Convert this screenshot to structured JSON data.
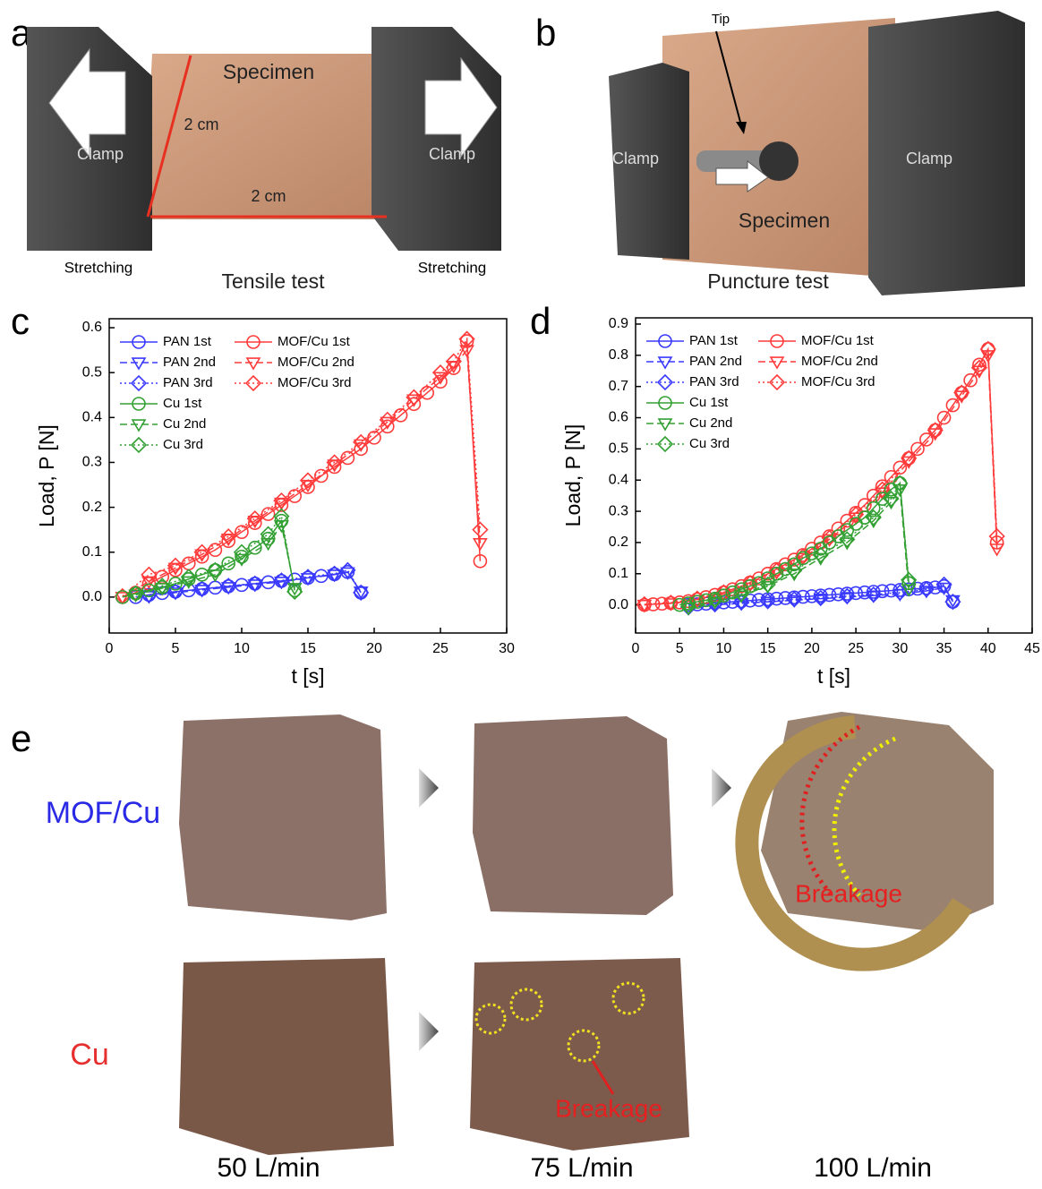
{
  "panel_labels": [
    "a",
    "b",
    "c",
    "d",
    "e"
  ],
  "panel_a": {
    "specimen": "Specimen",
    "dim_vertical": "2 cm",
    "dim_horizontal": "2 cm",
    "clamp_left": "Clamp",
    "clamp_right": "Clamp",
    "stretching_left": "Stretching",
    "stretching_right": "Stretching",
    "caption": "Tensile test"
  },
  "panel_b": {
    "tip": "Tip",
    "clamp_left": "Clamp",
    "clamp_right": "Clamp",
    "specimen": "Specimen",
    "caption": "Puncture test"
  },
  "panel_e": {
    "rows": [
      "MOF/Cu",
      "Cu"
    ],
    "columns": [
      "50 L/min",
      "75 L/min",
      "100 L/min"
    ],
    "annotations": [
      "Breakage",
      "Breakage"
    ]
  },
  "chart_data": [
    {
      "type": "line",
      "xlabel": "t [s]",
      "ylabel": "Load, P [N]",
      "xlim": [
        0,
        30
      ],
      "ylim": [
        -0.08,
        0.62
      ],
      "xticks": [
        0,
        5,
        10,
        15,
        20,
        25,
        30
      ],
      "yticks": [
        {
          "value": 0,
          "label": "0.0"
        },
        0.1,
        0.2,
        0.3,
        0.4,
        0.5,
        0.6
      ],
      "series": [
        {
          "name": "PAN 1st",
          "color": "#3a3aff",
          "marker": "circle",
          "line_style": "solid",
          "x": [
            2,
            3,
            4,
            5,
            6,
            7,
            8,
            9,
            10,
            11,
            12,
            13,
            14,
            15,
            16,
            17,
            18,
            19
          ],
          "values": [
            0,
            0.005,
            0.009,
            0.012,
            0.015,
            0.018,
            0.021,
            0.024,
            0.027,
            0.03,
            0.033,
            0.036,
            0.039,
            0.043,
            0.047,
            0.051,
            0.056,
            0.01
          ]
        },
        {
          "name": "PAN 2nd",
          "color": "#3a3aff",
          "marker": "triangle-down",
          "line_style": "dashed",
          "x": [
            3,
            5,
            7,
            9,
            11,
            13,
            15,
            17,
            18,
            19
          ],
          "values": [
            0.002,
            0.01,
            0.016,
            0.022,
            0.028,
            0.034,
            0.042,
            0.05,
            0.055,
            0.012
          ]
        },
        {
          "name": "PAN 3rd",
          "color": "#3a3aff",
          "marker": "diamond",
          "line_style": "dotted",
          "x": [
            3,
            5,
            7,
            9,
            11,
            13,
            15,
            17,
            18,
            19
          ],
          "values": [
            0.004,
            0.012,
            0.018,
            0.025,
            0.03,
            0.037,
            0.045,
            0.052,
            0.06,
            0.01
          ]
        },
        {
          "name": "MOF/Cu 1st",
          "color": "#ff3b3b",
          "marker": "circle",
          "line_style": "solid",
          "x": [
            1,
            2,
            3,
            4,
            5,
            6,
            7,
            8,
            9,
            10,
            11,
            12,
            13,
            14,
            15,
            16,
            17,
            18,
            19,
            20,
            21,
            22,
            23,
            24,
            25,
            26,
            27,
            28
          ],
          "values": [
            0,
            0.01,
            0.03,
            0.045,
            0.06,
            0.075,
            0.09,
            0.105,
            0.125,
            0.145,
            0.165,
            0.185,
            0.205,
            0.225,
            0.245,
            0.27,
            0.29,
            0.31,
            0.33,
            0.355,
            0.38,
            0.405,
            0.43,
            0.455,
            0.48,
            0.51,
            0.57,
            0.08
          ]
        },
        {
          "name": "MOF/Cu 2nd",
          "color": "#ff3b3b",
          "marker": "triangle-down",
          "line_style": "dashed",
          "x": [
            1,
            3,
            5,
            7,
            9,
            11,
            13,
            15,
            17,
            19,
            21,
            23,
            25,
            26,
            27,
            28
          ],
          "values": [
            0,
            0.035,
            0.065,
            0.095,
            0.13,
            0.17,
            0.21,
            0.25,
            0.295,
            0.34,
            0.39,
            0.44,
            0.49,
            0.515,
            0.55,
            0.12
          ]
        },
        {
          "name": "MOF/Cu 3rd",
          "color": "#ff3b3b",
          "marker": "diamond",
          "line_style": "dotted",
          "x": [
            1,
            3,
            5,
            7,
            9,
            11,
            13,
            15,
            17,
            19,
            21,
            23,
            25,
            26,
            27,
            28
          ],
          "values": [
            0.002,
            0.05,
            0.07,
            0.1,
            0.135,
            0.175,
            0.215,
            0.26,
            0.3,
            0.345,
            0.395,
            0.445,
            0.5,
            0.525,
            0.575,
            0.15
          ]
        },
        {
          "name": "Cu 1st",
          "color": "#33a033",
          "marker": "circle",
          "line_style": "solid",
          "x": [
            1,
            2,
            3,
            4,
            5,
            6,
            7,
            8,
            9,
            10,
            11,
            12,
            13,
            14
          ],
          "values": [
            0,
            0.008,
            0.015,
            0.022,
            0.03,
            0.04,
            0.05,
            0.06,
            0.075,
            0.09,
            0.11,
            0.13,
            0.17,
            0.015
          ]
        },
        {
          "name": "Cu 2nd",
          "color": "#33a033",
          "marker": "triangle-down",
          "line_style": "dashed",
          "x": [
            2,
            4,
            6,
            8,
            10,
            12,
            13,
            14
          ],
          "values": [
            0.005,
            0.02,
            0.035,
            0.05,
            0.085,
            0.12,
            0.16,
            0.02
          ]
        },
        {
          "name": "Cu 3rd",
          "color": "#33a033",
          "marker": "diamond",
          "line_style": "dotted",
          "x": [
            2,
            4,
            6,
            8,
            10,
            12,
            13,
            14
          ],
          "values": [
            0.008,
            0.025,
            0.045,
            0.06,
            0.1,
            0.14,
            0.18,
            0.012
          ]
        }
      ]
    },
    {
      "type": "line",
      "xlabel": "t [s]",
      "ylabel": "Load, P [N]",
      "xlim": [
        0,
        45
      ],
      "ylim": [
        -0.09,
        0.92
      ],
      "xticks": [
        0,
        5,
        10,
        15,
        20,
        25,
        30,
        35,
        40,
        45
      ],
      "yticks": [
        {
          "value": 0,
          "label": "0.0"
        },
        0.1,
        0.2,
        0.3,
        0.4,
        0.5,
        0.6,
        0.7,
        0.8,
        0.9
      ],
      "series": [
        {
          "name": "PAN 1st",
          "color": "#3a3aff",
          "marker": "circle",
          "line_style": "solid",
          "x": [
            6,
            7,
            8,
            9,
            10,
            11,
            12,
            13,
            14,
            15,
            16,
            17,
            18,
            19,
            20,
            21,
            22,
            23,
            24,
            25,
            26,
            27,
            28,
            29,
            30,
            31,
            32,
            33,
            34,
            35,
            36
          ],
          "values": [
            0,
            0.002,
            0.004,
            0.006,
            0.008,
            0.01,
            0.012,
            0.014,
            0.016,
            0.018,
            0.02,
            0.022,
            0.024,
            0.026,
            0.028,
            0.03,
            0.032,
            0.034,
            0.036,
            0.038,
            0.04,
            0.042,
            0.044,
            0.046,
            0.048,
            0.05,
            0.052,
            0.054,
            0.056,
            0.06,
            0.01
          ]
        },
        {
          "name": "PAN 2nd",
          "color": "#3a3aff",
          "marker": "triangle-down",
          "line_style": "dashed",
          "x": [
            6,
            9,
            12,
            15,
            18,
            21,
            24,
            27,
            30,
            33,
            35,
            36
          ],
          "values": [
            -0.01,
            0,
            0.005,
            0.01,
            0.015,
            0.02,
            0.025,
            0.03,
            0.035,
            0.045,
            0.055,
            0.015
          ]
        },
        {
          "name": "PAN 3rd",
          "color": "#3a3aff",
          "marker": "diamond",
          "line_style": "dotted",
          "x": [
            6,
            9,
            12,
            15,
            18,
            21,
            24,
            27,
            30,
            33,
            35,
            36
          ],
          "values": [
            -0.008,
            0.002,
            0.008,
            0.012,
            0.018,
            0.022,
            0.028,
            0.033,
            0.04,
            0.05,
            0.065,
            0.01
          ]
        },
        {
          "name": "MOF/Cu 1st",
          "color": "#ff3b3b",
          "marker": "circle",
          "line_style": "solid",
          "x": [
            1,
            2,
            3,
            4,
            5,
            6,
            7,
            8,
            9,
            10,
            11,
            12,
            13,
            14,
            15,
            16,
            17,
            18,
            19,
            20,
            21,
            22,
            23,
            24,
            25,
            26,
            27,
            28,
            29,
            30,
            31,
            32,
            33,
            34,
            35,
            36,
            37,
            38,
            39,
            40,
            41
          ],
          "values": [
            0,
            0.002,
            0.004,
            0.006,
            0.008,
            0.012,
            0.018,
            0.025,
            0.032,
            0.04,
            0.05,
            0.06,
            0.072,
            0.085,
            0.1,
            0.115,
            0.13,
            0.145,
            0.16,
            0.18,
            0.2,
            0.22,
            0.245,
            0.27,
            0.295,
            0.32,
            0.35,
            0.38,
            0.41,
            0.44,
            0.47,
            0.5,
            0.53,
            0.56,
            0.6,
            0.64,
            0.68,
            0.72,
            0.77,
            0.82,
            0.2
          ]
        },
        {
          "name": "MOF/Cu 2nd",
          "color": "#ff3b3b",
          "marker": "triangle-down",
          "line_style": "dashed",
          "x": [
            1,
            4,
            7,
            10,
            13,
            16,
            19,
            22,
            25,
            28,
            31,
            34,
            37,
            39,
            40,
            41
          ],
          "values": [
            0,
            0.005,
            0.015,
            0.035,
            0.065,
            0.105,
            0.15,
            0.21,
            0.28,
            0.36,
            0.46,
            0.55,
            0.67,
            0.75,
            0.8,
            0.18
          ]
        },
        {
          "name": "MOF/Cu 3rd",
          "color": "#ff3b3b",
          "marker": "diamond",
          "line_style": "dotted",
          "x": [
            1,
            4,
            7,
            10,
            13,
            16,
            19,
            22,
            25,
            28,
            31,
            34,
            37,
            39,
            40,
            41
          ],
          "values": [
            0.002,
            0.007,
            0.02,
            0.04,
            0.07,
            0.11,
            0.155,
            0.215,
            0.29,
            0.37,
            0.47,
            0.56,
            0.68,
            0.76,
            0.82,
            0.22
          ]
        },
        {
          "name": "Cu 1st",
          "color": "#33a033",
          "marker": "circle",
          "line_style": "solid",
          "x": [
            5,
            6,
            7,
            8,
            9,
            10,
            11,
            12,
            13,
            14,
            15,
            16,
            17,
            18,
            19,
            20,
            21,
            22,
            23,
            24,
            25,
            26,
            27,
            28,
            29,
            30,
            31
          ],
          "values": [
            0,
            0.005,
            0.01,
            0.015,
            0.02,
            0.03,
            0.04,
            0.05,
            0.06,
            0.07,
            0.085,
            0.1,
            0.115,
            0.13,
            0.15,
            0.165,
            0.18,
            0.2,
            0.22,
            0.24,
            0.26,
            0.28,
            0.31,
            0.34,
            0.37,
            0.39,
            0.07
          ]
        },
        {
          "name": "Cu 2nd",
          "color": "#33a033",
          "marker": "triangle-down",
          "line_style": "dashed",
          "x": [
            6,
            9,
            12,
            15,
            18,
            21,
            24,
            27,
            29,
            30,
            31
          ],
          "values": [
            -0.01,
            0.01,
            0.03,
            0.06,
            0.1,
            0.15,
            0.2,
            0.27,
            0.33,
            0.37,
            0.05
          ]
        },
        {
          "name": "Cu 3rd",
          "color": "#33a033",
          "marker": "diamond",
          "line_style": "dotted",
          "x": [
            6,
            9,
            12,
            15,
            18,
            21,
            24,
            27,
            29,
            30,
            31
          ],
          "values": [
            -0.005,
            0.015,
            0.035,
            0.065,
            0.11,
            0.16,
            0.21,
            0.28,
            0.34,
            0.39,
            0.08
          ]
        }
      ]
    }
  ]
}
